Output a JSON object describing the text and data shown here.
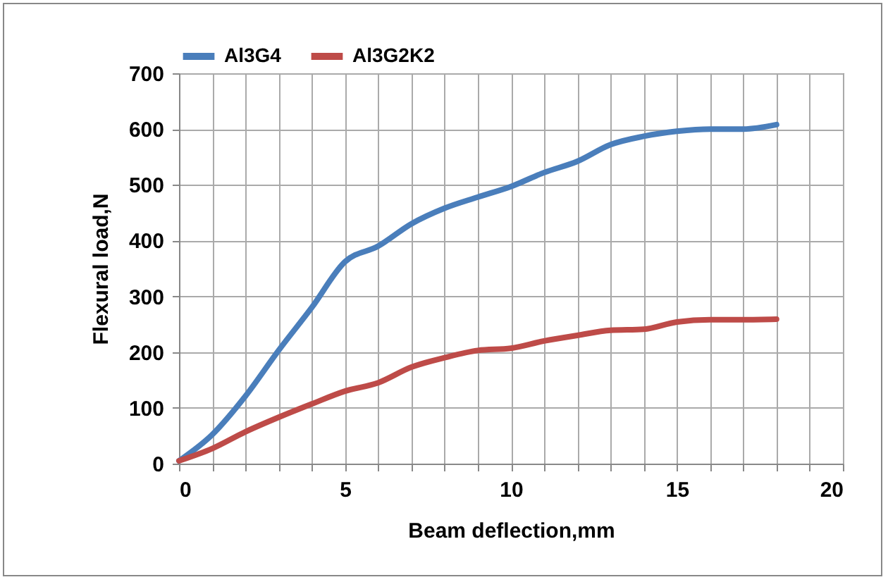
{
  "chart_data": {
    "type": "line",
    "xlabel": "Beam deflection,mm",
    "ylabel": "Flexural load,N",
    "x": [
      0,
      1,
      2,
      3,
      4,
      5,
      6,
      7,
      8,
      9,
      10,
      11,
      12,
      13,
      14,
      15,
      16,
      17,
      18
    ],
    "series": [
      {
        "name": "Al3G4",
        "color": "#4a7ebb",
        "values": [
          5,
          52,
          121,
          203,
          280,
          362,
          390,
          430,
          458,
          478,
          497,
          522,
          542,
          572,
          587,
          596,
          600,
          600,
          608
        ]
      },
      {
        "name": "Al3G2K2",
        "color": "#be4b48",
        "values": [
          5,
          27,
          57,
          83,
          107,
          130,
          145,
          173,
          190,
          203,
          207,
          220,
          230,
          239,
          241,
          254,
          258,
          258,
          259
        ]
      }
    ],
    "xlim": [
      0,
      20
    ],
    "xticks": [
      0,
      {
        "value": 1,
        "label": null
      },
      {
        "value": 2,
        "label": null
      },
      {
        "value": 3,
        "label": null
      },
      {
        "value": 4,
        "label": null
      },
      5,
      {
        "value": 6,
        "label": null
      },
      {
        "value": 7,
        "label": null
      },
      {
        "value": 8,
        "label": null
      },
      {
        "value": 9,
        "label": null
      },
      10,
      {
        "value": 11,
        "label": null
      },
      {
        "value": 12,
        "label": null
      },
      {
        "value": 13,
        "label": null
      },
      {
        "value": 14,
        "label": null
      },
      15,
      {
        "value": 16,
        "label": null
      },
      {
        "value": 17,
        "label": null
      },
      {
        "value": 18,
        "label": null
      },
      {
        "value": 19,
        "label": null
      },
      20
    ],
    "ylim": [
      0,
      700
    ],
    "yticks": [
      0,
      100,
      200,
      300,
      400,
      500,
      600,
      700
    ],
    "grid": true,
    "legend": "top",
    "marker": "none",
    "line_style": "solid"
  }
}
